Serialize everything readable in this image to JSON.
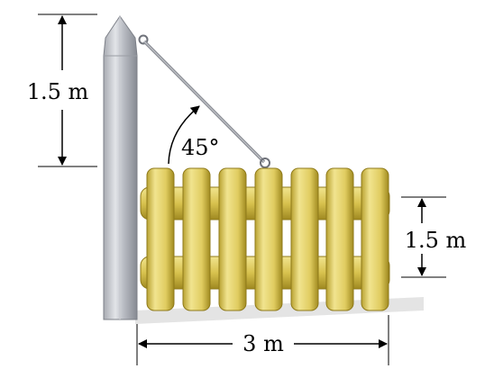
{
  "labels": {
    "post_height": "1.5 m",
    "fence_height": "1.5 m",
    "width": "3 m",
    "angle": "45°"
  },
  "colors": {
    "post_light": "#d9dbe0",
    "post_dark": "#8e929a",
    "wood_light": "#f3e79a",
    "wood_mid": "#d9c250",
    "wood_dark": "#a58f22",
    "cable": "#8c8f96"
  }
}
